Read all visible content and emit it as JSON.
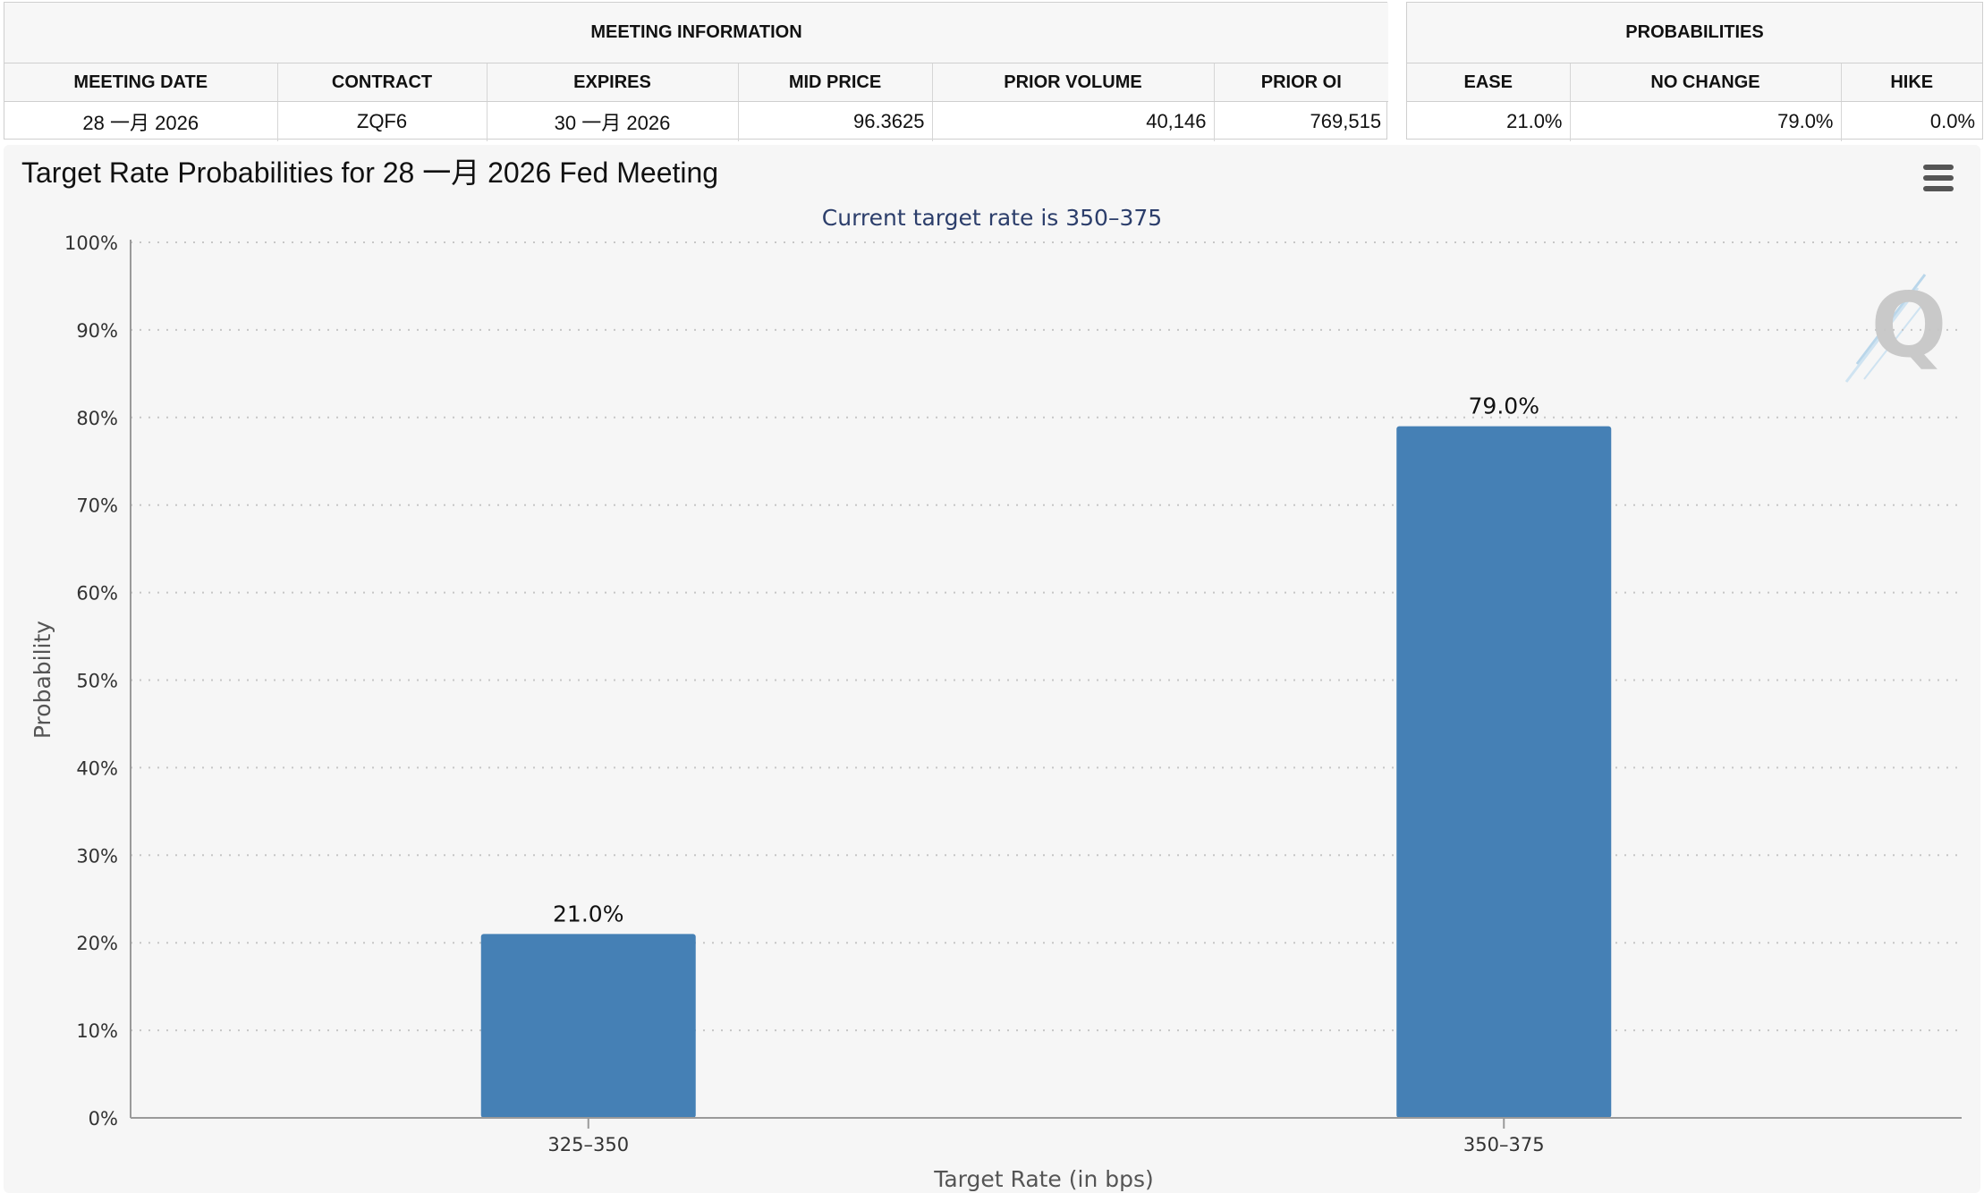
{
  "meeting_info": {
    "title": "MEETING INFORMATION",
    "columns": [
      "MEETING DATE",
      "CONTRACT",
      "EXPIRES",
      "MID PRICE",
      "PRIOR VOLUME",
      "PRIOR OI"
    ],
    "row": [
      "28 一月 2026",
      "ZQF6",
      "30 一月 2026",
      "96.3625",
      "40,146",
      "769,515"
    ]
  },
  "probabilities": {
    "title": "PROBABILITIES",
    "columns": [
      "EASE",
      "NO CHANGE",
      "HIKE"
    ],
    "row": [
      "21.0%",
      "79.0%",
      "0.0%"
    ]
  },
  "chart_data": {
    "type": "bar",
    "title": "Target Rate Probabilities for 28 一月 2026 Fed Meeting",
    "subtitle": "Current target rate is 350–375",
    "xlabel": "Target Rate (in bps)",
    "ylabel": "Probability",
    "categories": [
      "325–350",
      "350–375"
    ],
    "values": [
      21.0,
      79.0
    ],
    "data_labels": [
      "21.0%",
      "79.0%"
    ],
    "ylim": [
      0,
      100
    ],
    "y_ticks": [
      0,
      10,
      20,
      30,
      40,
      50,
      60,
      70,
      80,
      90,
      100
    ],
    "y_tick_format": "%",
    "grid": true,
    "bar_color": "#4580b5",
    "subtitle_color": "#2c3e6b"
  },
  "watermark": {
    "letter": "Q"
  }
}
